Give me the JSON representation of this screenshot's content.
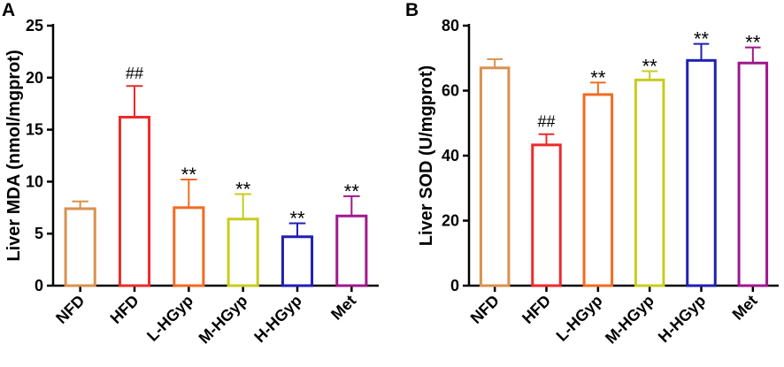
{
  "chart_data": [
    {
      "type": "bar",
      "panel": "A",
      "ylabel": "Liver MDA (nmol/mgprot)",
      "xlabel": "",
      "ylim": [
        0,
        25
      ],
      "yticks": [
        "0",
        "5",
        "10",
        "15",
        "20",
        "25"
      ],
      "categories": [
        "NFD",
        "HFD",
        "L-HGyp",
        "M-HGyp",
        "H-HGyp",
        "Met"
      ],
      "values": [
        7.4,
        16.2,
        7.5,
        6.4,
        4.7,
        6.7
      ],
      "errors": [
        0.7,
        3.0,
        2.7,
        2.4,
        1.3,
        1.9
      ],
      "significance": [
        "",
        "##",
        "**",
        "**",
        "**",
        "**"
      ],
      "colors": [
        "#D9914F",
        "#EE2A2A",
        "#F26B21",
        "#C8CC1E",
        "#1F1FB4",
        "#A0178C"
      ]
    },
    {
      "type": "bar",
      "panel": "B",
      "ylabel": "Liver SOD (U/mgprot)",
      "xlabel": "",
      "ylim": [
        0,
        80
      ],
      "yticks": [
        "0",
        "20",
        "40",
        "60",
        "80"
      ],
      "categories": [
        "NFD",
        "HFD",
        "L-HGyp",
        "M-HGyp",
        "H-HGyp",
        "Met"
      ],
      "values": [
        67.0,
        43.3,
        58.8,
        63.3,
        69.3,
        68.5
      ],
      "errors": [
        2.7,
        3.3,
        3.7,
        2.7,
        5.1,
        4.8
      ],
      "significance": [
        "",
        "##",
        "**",
        "**",
        "**",
        "**"
      ],
      "colors": [
        "#D9914F",
        "#EE2A2A",
        "#F26B21",
        "#C8CC1E",
        "#1F1FB4",
        "#A0178C"
      ]
    }
  ]
}
